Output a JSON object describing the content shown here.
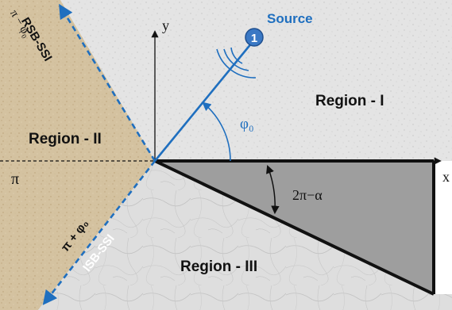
{
  "regions": {
    "region_1": "Region - I",
    "region_2": "Region - II",
    "region_3": "Region - III"
  },
  "source": {
    "label": "Source",
    "marker_number": "1"
  },
  "axes": {
    "x_label": "x",
    "y_label": "y",
    "pi_label": "π"
  },
  "angles": {
    "phi0": "φ₀",
    "wedge": "2π−α",
    "pi_minus_phi0": "π − φ₀",
    "pi_plus_phi0": "π + φ₀"
  },
  "boundaries": {
    "rsb": "RSB-SSI",
    "isb": "ISB-SSI"
  },
  "colors": {
    "accent_blue": "#1f6fbf",
    "source_blue": "#3a78c4",
    "wedge_gray": "#9e9e9e",
    "region_tan": "#d2c09e",
    "region_light": "#e6e6e6",
    "region_marble": "#dcdcdc"
  }
}
